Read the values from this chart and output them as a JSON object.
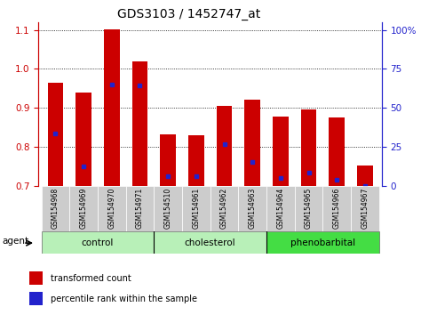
{
  "title": "GDS3103 / 1452747_at",
  "samples": [
    "GSM154968",
    "GSM154969",
    "GSM154970",
    "GSM154971",
    "GSM154510",
    "GSM154961",
    "GSM154962",
    "GSM154963",
    "GSM154964",
    "GSM154965",
    "GSM154966",
    "GSM154967"
  ],
  "transformed_count": [
    0.965,
    0.94,
    1.102,
    1.02,
    0.831,
    0.83,
    0.905,
    0.92,
    0.877,
    0.897,
    0.875,
    0.753
  ],
  "percentile_rank_left": [
    0.835,
    0.75,
    0.96,
    0.958,
    0.725,
    0.725,
    0.808,
    0.762,
    0.72,
    0.735,
    0.715,
    0.7
  ],
  "ylim": [
    0.7,
    1.12
  ],
  "yticks": [
    0.7,
    0.8,
    0.9,
    1.0,
    1.1
  ],
  "y2ticks": [
    0,
    25,
    50,
    75,
    100
  ],
  "y2ticklabels": [
    "0",
    "25",
    "50",
    "75",
    "100%"
  ],
  "groups": [
    {
      "label": "control",
      "start": 0,
      "end": 3,
      "color": "#b8f0b8"
    },
    {
      "label": "cholesterol",
      "start": 4,
      "end": 7,
      "color": "#b8f0b8"
    },
    {
      "label": "phenobarbital",
      "start": 8,
      "end": 11,
      "color": "#44dd44"
    }
  ],
  "bar_color": "#cc0000",
  "dot_color": "#2222cc",
  "bar_width": 0.55,
  "bar_bottom": 0.7,
  "agent_label": "agent",
  "legend_items": [
    {
      "label": "transformed count",
      "color": "#cc0000"
    },
    {
      "label": "percentile rank within the sample",
      "color": "#2222cc"
    }
  ],
  "axis_color_left": "#cc0000",
  "axis_color_right": "#2222cc",
  "bg_color": "#ffffff",
  "xticklabel_bg": "#cccccc",
  "grid_color": "#000000",
  "title_fontsize": 10
}
